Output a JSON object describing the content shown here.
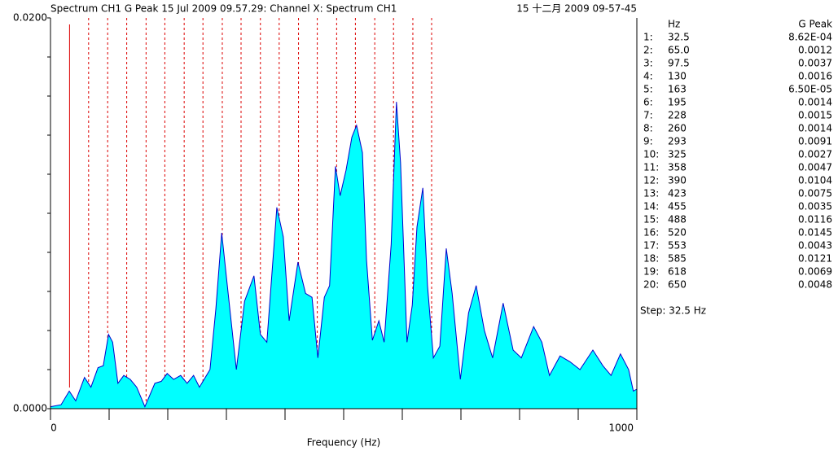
{
  "chart_data": {
    "type": "area",
    "title": "Spectrum CH1 G Peak   15 Jul 2009 09.57.29: Channel X: Spectrum CH1",
    "timestamp": "15 十二月 2009 09-57-45",
    "x_label": "Frequency (Hz)",
    "xlim": [
      0,
      1000
    ],
    "xticks": [
      0,
      1000
    ],
    "xminorticks": [
      100,
      200,
      300,
      400,
      500,
      600,
      700,
      800,
      900
    ],
    "ylim": [
      0,
      0.02
    ],
    "yticks": [
      {
        "value": 0,
        "label": "0.0000"
      },
      {
        "value": 0.02,
        "label": "0.0200"
      }
    ],
    "yminorticks": [
      0.002,
      0.004,
      0.006,
      0.008,
      0.01,
      0.012,
      0.014,
      0.016,
      0.018
    ],
    "series": [
      {
        "color": "#00ffff",
        "line_color": "#0000cc",
        "x": [
          0,
          18,
          32,
          43,
          58,
          69,
          81,
          90,
          99,
          106,
          115,
          125,
          136,
          147,
          161,
          178,
          189,
          199,
          210,
          222,
          233,
          244,
          254,
          272,
          282,
          292,
          303,
          317,
          331,
          347,
          358,
          369,
          386,
          397,
          407,
          422,
          435,
          446,
          456,
          467,
          476,
          486,
          494,
          504,
          514,
          522,
          532,
          539,
          549,
          560,
          569,
          581,
          590,
          597,
          608,
          617,
          625,
          635,
          643,
          653,
          664,
          675,
          685,
          699,
          713,
          726,
          740,
          754,
          772,
          789,
          803,
          824,
          838,
          851,
          869,
          886,
          903,
          925,
          942,
          956,
          972,
          986,
          994,
          1000
        ],
        "values": [
          0.0001,
          0.0002,
          0.0009,
          0.0004,
          0.0016,
          0.0011,
          0.0021,
          0.0022,
          0.0038,
          0.0034,
          0.0013,
          0.0017,
          0.0015,
          0.0011,
          0.0001,
          0.0013,
          0.0014,
          0.0018,
          0.0015,
          0.0017,
          0.0013,
          0.0017,
          0.0011,
          0.002,
          0.0051,
          0.009,
          0.0059,
          0.002,
          0.0055,
          0.0068,
          0.0038,
          0.0034,
          0.0103,
          0.0088,
          0.0045,
          0.0075,
          0.0059,
          0.0057,
          0.0026,
          0.0057,
          0.0063,
          0.0124,
          0.0109,
          0.0122,
          0.0139,
          0.0145,
          0.0131,
          0.0076,
          0.0035,
          0.0045,
          0.0034,
          0.0084,
          0.0157,
          0.0126,
          0.0034,
          0.0053,
          0.0093,
          0.0113,
          0.0063,
          0.0026,
          0.0032,
          0.0082,
          0.0059,
          0.0015,
          0.0049,
          0.0063,
          0.004,
          0.0026,
          0.0054,
          0.003,
          0.0026,
          0.0042,
          0.0034,
          0.0017,
          0.0027,
          0.0024,
          0.002,
          0.003,
          0.0022,
          0.0017,
          0.0028,
          0.002,
          0.0009,
          0.001
        ]
      }
    ],
    "harmonic_color": "#dd0000",
    "table": {
      "header_hz": "Hz",
      "header_peak": "G Peak",
      "rows": [
        {
          "n": "1:",
          "hz": 32.5,
          "peak": {
            "value": 0.000862,
            "label": "8.62E-04"
          }
        },
        {
          "n": "2:",
          "hz": {
            "value": 65,
            "label": "65.0"
          },
          "peak": 0.0012
        },
        {
          "n": "3:",
          "hz": 97.5,
          "peak": 0.0037
        },
        {
          "n": "4:",
          "hz": 130,
          "peak": 0.0016
        },
        {
          "n": "5:",
          "hz": 163,
          "peak": {
            "value": 6.5e-05,
            "label": "6.50E-05"
          }
        },
        {
          "n": "6:",
          "hz": 195,
          "peak": 0.0014
        },
        {
          "n": "7:",
          "hz": 228,
          "peak": 0.0015
        },
        {
          "n": "8:",
          "hz": 260,
          "peak": 0.0014
        },
        {
          "n": "9:",
          "hz": 293,
          "peak": 0.0091
        },
        {
          "n": "10:",
          "hz": 325,
          "peak": 0.0027
        },
        {
          "n": "11:",
          "hz": 358,
          "peak": 0.0047
        },
        {
          "n": "12:",
          "hz": 390,
          "peak": 0.0104
        },
        {
          "n": "13:",
          "hz": 423,
          "peak": 0.0075
        },
        {
          "n": "14:",
          "hz": 455,
          "peak": 0.0035
        },
        {
          "n": "15:",
          "hz": 488,
          "peak": 0.0116
        },
        {
          "n": "16:",
          "hz": 520,
          "peak": 0.0145
        },
        {
          "n": "17:",
          "hz": 553,
          "peak": 0.0043
        },
        {
          "n": "18:",
          "hz": 585,
          "peak": 0.0121
        },
        {
          "n": "19:",
          "hz": 618,
          "peak": 0.0069
        },
        {
          "n": "20:",
          "hz": 650,
          "peak": 0.0048
        }
      ],
      "step": "Step: 32.5 Hz"
    }
  }
}
